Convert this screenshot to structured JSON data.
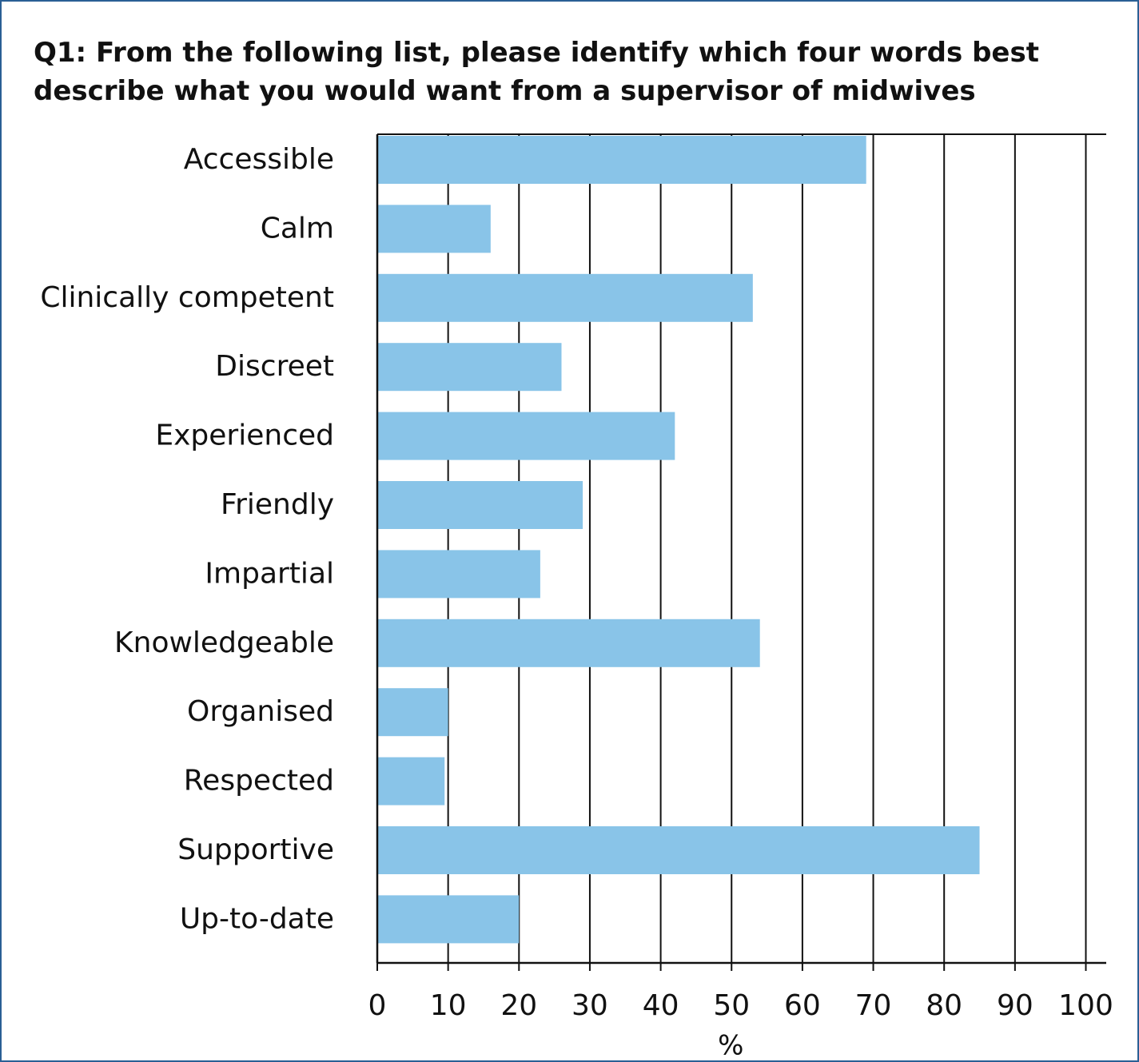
{
  "chart_data": {
    "type": "bar",
    "orientation": "horizontal",
    "title": "Q1: From the following list, please identify which four words best describe what you would want from a supervisor of midwives",
    "xlabel": "%",
    "xlim": [
      0,
      100
    ],
    "xticks": [
      "0",
      "10",
      "20",
      "30",
      "40",
      "50",
      "60",
      "70",
      "80",
      "90",
      "100"
    ],
    "grid": "vertical",
    "bar_color": "#89c4e8",
    "categories": [
      "Accessible",
      "Calm",
      "Clinically competent",
      "Discreet",
      "Experienced",
      "Friendly",
      "Impartial",
      "Knowledgeable",
      "Organised",
      "Respected",
      "Supportive",
      "Up-to-date"
    ],
    "values": [
      69,
      16,
      53,
      26,
      42,
      29,
      23,
      54,
      10,
      9.5,
      85,
      20
    ]
  }
}
